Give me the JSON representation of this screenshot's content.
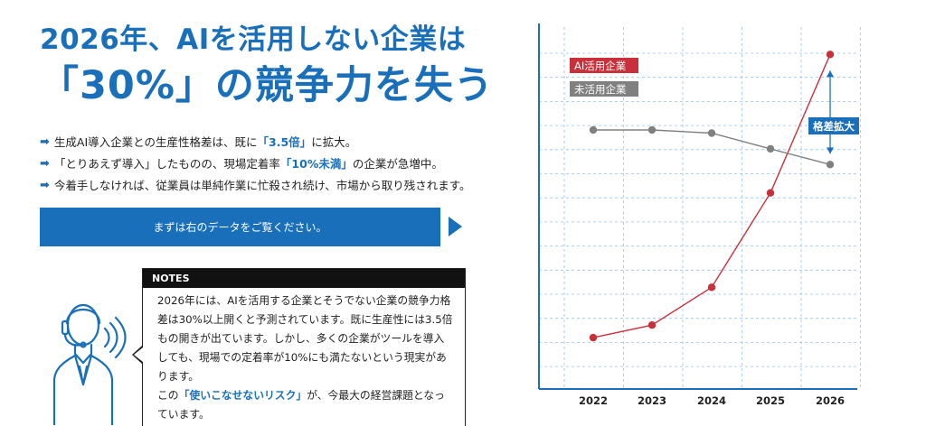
{
  "headline": {
    "line1": "2026年、AIを活用しない企業は",
    "line2": "「30%」の競争力を失う"
  },
  "bullets": [
    {
      "pre": "生成AI導入企業との生産性格差は、既に",
      "hl": "「3.5倍」",
      "post": "に拡大。"
    },
    {
      "pre": "「とりあえず導入」したものの、現場定着率",
      "hl": "「10%未満」",
      "post": "の企業が急増中。"
    },
    {
      "pre": "今着手しなければ、従業員は単純作業に忙殺され続け、市場から取り残されます。",
      "hl": "",
      "post": ""
    }
  ],
  "cta": {
    "label": "まずは右のデータをご覧ください。"
  },
  "notes": {
    "title": "NOTES",
    "body1": "2026年には、AIを活用する企業とそうでない企業の競争力格差は30%以上開くと予測されています。既に生産性には3.5倍もの開きが出ています。しかし、多くの企業がツールを導入しても、現場での定着率が10%にも満たないという現実があります。",
    "body2_pre": "この",
    "body2_hl": "「使いこなせないリスク」",
    "body2_post": "が、今最大の経営課題となっています。"
  },
  "colors": {
    "accent": "#1a6fba",
    "ai_series": "#c8313a",
    "non_ai_series": "#808080"
  },
  "icons": {
    "person": "headset-person-icon"
  },
  "chart_data": {
    "type": "line",
    "x": [
      "2022",
      "2023",
      "2024",
      "2025",
      "2026"
    ],
    "series": [
      {
        "name": "AI活用企業",
        "color": "#c8313a",
        "values": [
          10,
          14,
          26,
          56,
          100
        ]
      },
      {
        "name": "未活用企業",
        "color": "#808080",
        "values": [
          76,
          76,
          75,
          70,
          65
        ]
      }
    ],
    "annotation": "格差拡大",
    "ylim": [
      0,
      115
    ],
    "grid": true,
    "legend": "top-left"
  }
}
